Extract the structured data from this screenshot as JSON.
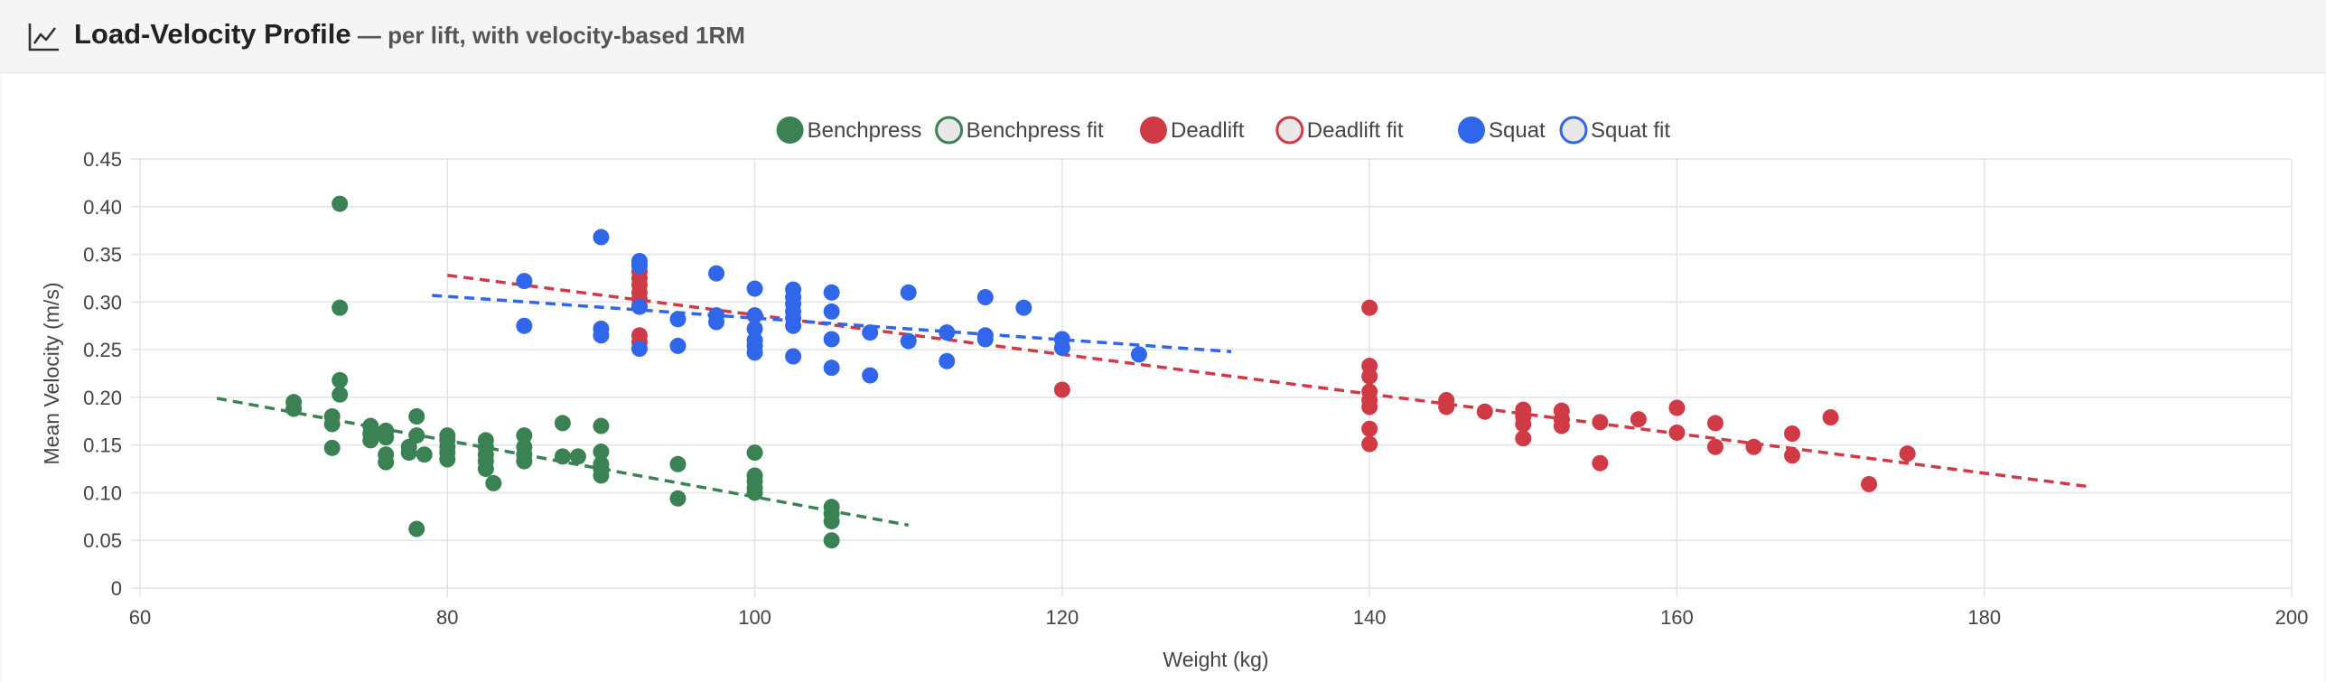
{
  "header": {
    "title": "Load-Velocity Profile",
    "subtitle": " — per lift, with velocity-based 1RM"
  },
  "chart_data": {
    "type": "scatter",
    "title": "",
    "xlabel": "Weight (kg)",
    "ylabel": "Mean Velocity (m/s)",
    "xlim": [
      60,
      200
    ],
    "ylim": [
      0,
      0.45
    ],
    "x_ticks": [
      60,
      80,
      100,
      120,
      140,
      160,
      180,
      200
    ],
    "y_ticks": [
      0,
      0.05,
      0.1,
      0.15,
      0.2,
      0.25,
      0.3,
      0.35,
      0.4,
      0.45
    ],
    "y_tick_labels": [
      "0",
      "0.05",
      "0.10",
      "0.15",
      "0.20",
      "0.25",
      "0.30",
      "0.35",
      "0.40",
      "0.45"
    ],
    "x_tick_labels": [
      "60",
      "80",
      "100",
      "120",
      "140",
      "160",
      "180",
      "200"
    ],
    "grid": true,
    "legend_position": "top-center",
    "legend": [
      {
        "label": "Benchpress",
        "style": "filled",
        "color": "#3a8254"
      },
      {
        "label": "Benchpress fit",
        "style": "hollow",
        "color": "#3a8254"
      },
      {
        "label": "Deadlift",
        "style": "filled",
        "color": "#d03a45"
      },
      {
        "label": "Deadlift fit",
        "style": "hollow",
        "color": "#d03a45"
      },
      {
        "label": "Squat",
        "style": "filled",
        "color": "#2f66ea"
      },
      {
        "label": "Squat fit",
        "style": "hollow",
        "color": "#2f66ea"
      }
    ],
    "series": [
      {
        "name": "Benchpress",
        "color": "#3a8254",
        "points": [
          [
            70,
            0.195
          ],
          [
            70,
            0.188
          ],
          [
            72.5,
            0.18
          ],
          [
            72.5,
            0.172
          ],
          [
            72.5,
            0.147
          ],
          [
            73,
            0.403
          ],
          [
            73,
            0.294
          ],
          [
            73,
            0.218
          ],
          [
            73,
            0.203
          ],
          [
            75,
            0.17
          ],
          [
            75,
            0.162
          ],
          [
            75,
            0.155
          ],
          [
            76,
            0.165
          ],
          [
            76,
            0.158
          ],
          [
            76,
            0.14
          ],
          [
            76,
            0.132
          ],
          [
            77.5,
            0.148
          ],
          [
            77.5,
            0.142
          ],
          [
            78,
            0.18
          ],
          [
            78,
            0.16
          ],
          [
            78,
            0.062
          ],
          [
            78.5,
            0.14
          ],
          [
            80,
            0.16
          ],
          [
            80,
            0.155
          ],
          [
            80,
            0.148
          ],
          [
            80,
            0.142
          ],
          [
            80,
            0.135
          ],
          [
            82.5,
            0.155
          ],
          [
            82.5,
            0.148
          ],
          [
            82.5,
            0.14
          ],
          [
            82.5,
            0.133
          ],
          [
            82.5,
            0.125
          ],
          [
            83,
            0.11
          ],
          [
            85,
            0.16
          ],
          [
            85,
            0.148
          ],
          [
            85,
            0.14
          ],
          [
            85,
            0.133
          ],
          [
            87.5,
            0.173
          ],
          [
            87.5,
            0.138
          ],
          [
            88.5,
            0.138
          ],
          [
            90,
            0.17
          ],
          [
            90,
            0.143
          ],
          [
            90,
            0.13
          ],
          [
            90,
            0.125
          ],
          [
            90,
            0.118
          ],
          [
            95,
            0.13
          ],
          [
            95,
            0.094
          ],
          [
            100,
            0.142
          ],
          [
            100,
            0.118
          ],
          [
            100,
            0.112
          ],
          [
            100,
            0.105
          ],
          [
            100,
            0.1
          ],
          [
            105,
            0.085
          ],
          [
            105,
            0.078
          ],
          [
            105,
            0.07
          ],
          [
            105,
            0.05
          ]
        ]
      },
      {
        "name": "Deadlift",
        "color": "#d03a45",
        "points": [
          [
            92.5,
            0.34
          ],
          [
            92.5,
            0.332
          ],
          [
            92.5,
            0.325
          ],
          [
            92.5,
            0.318
          ],
          [
            92.5,
            0.31
          ],
          [
            92.5,
            0.303
          ],
          [
            92.5,
            0.296
          ],
          [
            92.5,
            0.265
          ],
          [
            92.5,
            0.258
          ],
          [
            120,
            0.208
          ],
          [
            140,
            0.294
          ],
          [
            140,
            0.233
          ],
          [
            140,
            0.222
          ],
          [
            140,
            0.206
          ],
          [
            140,
            0.197
          ],
          [
            140,
            0.19
          ],
          [
            140,
            0.167
          ],
          [
            140,
            0.151
          ],
          [
            145,
            0.197
          ],
          [
            145,
            0.19
          ],
          [
            147.5,
            0.185
          ],
          [
            150,
            0.187
          ],
          [
            150,
            0.18
          ],
          [
            150,
            0.172
          ],
          [
            150,
            0.157
          ],
          [
            152.5,
            0.186
          ],
          [
            152.5,
            0.177
          ],
          [
            152.5,
            0.17
          ],
          [
            155,
            0.174
          ],
          [
            155,
            0.131
          ],
          [
            157.5,
            0.177
          ],
          [
            160,
            0.189
          ],
          [
            160,
            0.163
          ],
          [
            162.5,
            0.173
          ],
          [
            162.5,
            0.148
          ],
          [
            165,
            0.148
          ],
          [
            167.5,
            0.162
          ],
          [
            167.5,
            0.139
          ],
          [
            170,
            0.179
          ],
          [
            172.5,
            0.109
          ],
          [
            175,
            0.141
          ]
        ]
      },
      {
        "name": "Squat",
        "color": "#2f66ea",
        "points": [
          [
            85,
            0.322
          ],
          [
            85,
            0.275
          ],
          [
            90,
            0.368
          ],
          [
            90,
            0.272
          ],
          [
            90,
            0.265
          ],
          [
            92.5,
            0.343
          ],
          [
            92.5,
            0.338
          ],
          [
            92.5,
            0.295
          ],
          [
            92.5,
            0.251
          ],
          [
            95,
            0.282
          ],
          [
            95,
            0.254
          ],
          [
            97.5,
            0.33
          ],
          [
            97.5,
            0.286
          ],
          [
            97.5,
            0.279
          ],
          [
            100,
            0.314
          ],
          [
            100,
            0.286
          ],
          [
            100,
            0.272
          ],
          [
            100,
            0.26
          ],
          [
            100,
            0.254
          ],
          [
            100,
            0.247
          ],
          [
            102.5,
            0.313
          ],
          [
            102.5,
            0.305
          ],
          [
            102.5,
            0.298
          ],
          [
            102.5,
            0.29
          ],
          [
            102.5,
            0.283
          ],
          [
            102.5,
            0.275
          ],
          [
            102.5,
            0.243
          ],
          [
            105,
            0.31
          ],
          [
            105,
            0.29
          ],
          [
            105,
            0.261
          ],
          [
            105,
            0.231
          ],
          [
            107.5,
            0.268
          ],
          [
            107.5,
            0.223
          ],
          [
            110,
            0.31
          ],
          [
            110,
            0.259
          ],
          [
            112.5,
            0.268
          ],
          [
            112.5,
            0.238
          ],
          [
            115,
            0.305
          ],
          [
            115,
            0.265
          ],
          [
            115,
            0.261
          ],
          [
            117.5,
            0.294
          ],
          [
            120,
            0.261
          ],
          [
            120,
            0.252
          ],
          [
            125,
            0.245
          ]
        ]
      }
    ],
    "fit_lines": [
      {
        "name": "Benchpress fit",
        "color": "#3a8254",
        "x": [
          65,
          110
        ],
        "y": [
          0.199,
          0.066
        ]
      },
      {
        "name": "Deadlift fit",
        "color": "#d03a45",
        "x": [
          80,
          187
        ],
        "y": [
          0.328,
          0.106
        ]
      },
      {
        "name": "Squat fit",
        "color": "#2f66ea",
        "x": [
          79,
          131
        ],
        "y": [
          0.307,
          0.248
        ]
      }
    ]
  }
}
